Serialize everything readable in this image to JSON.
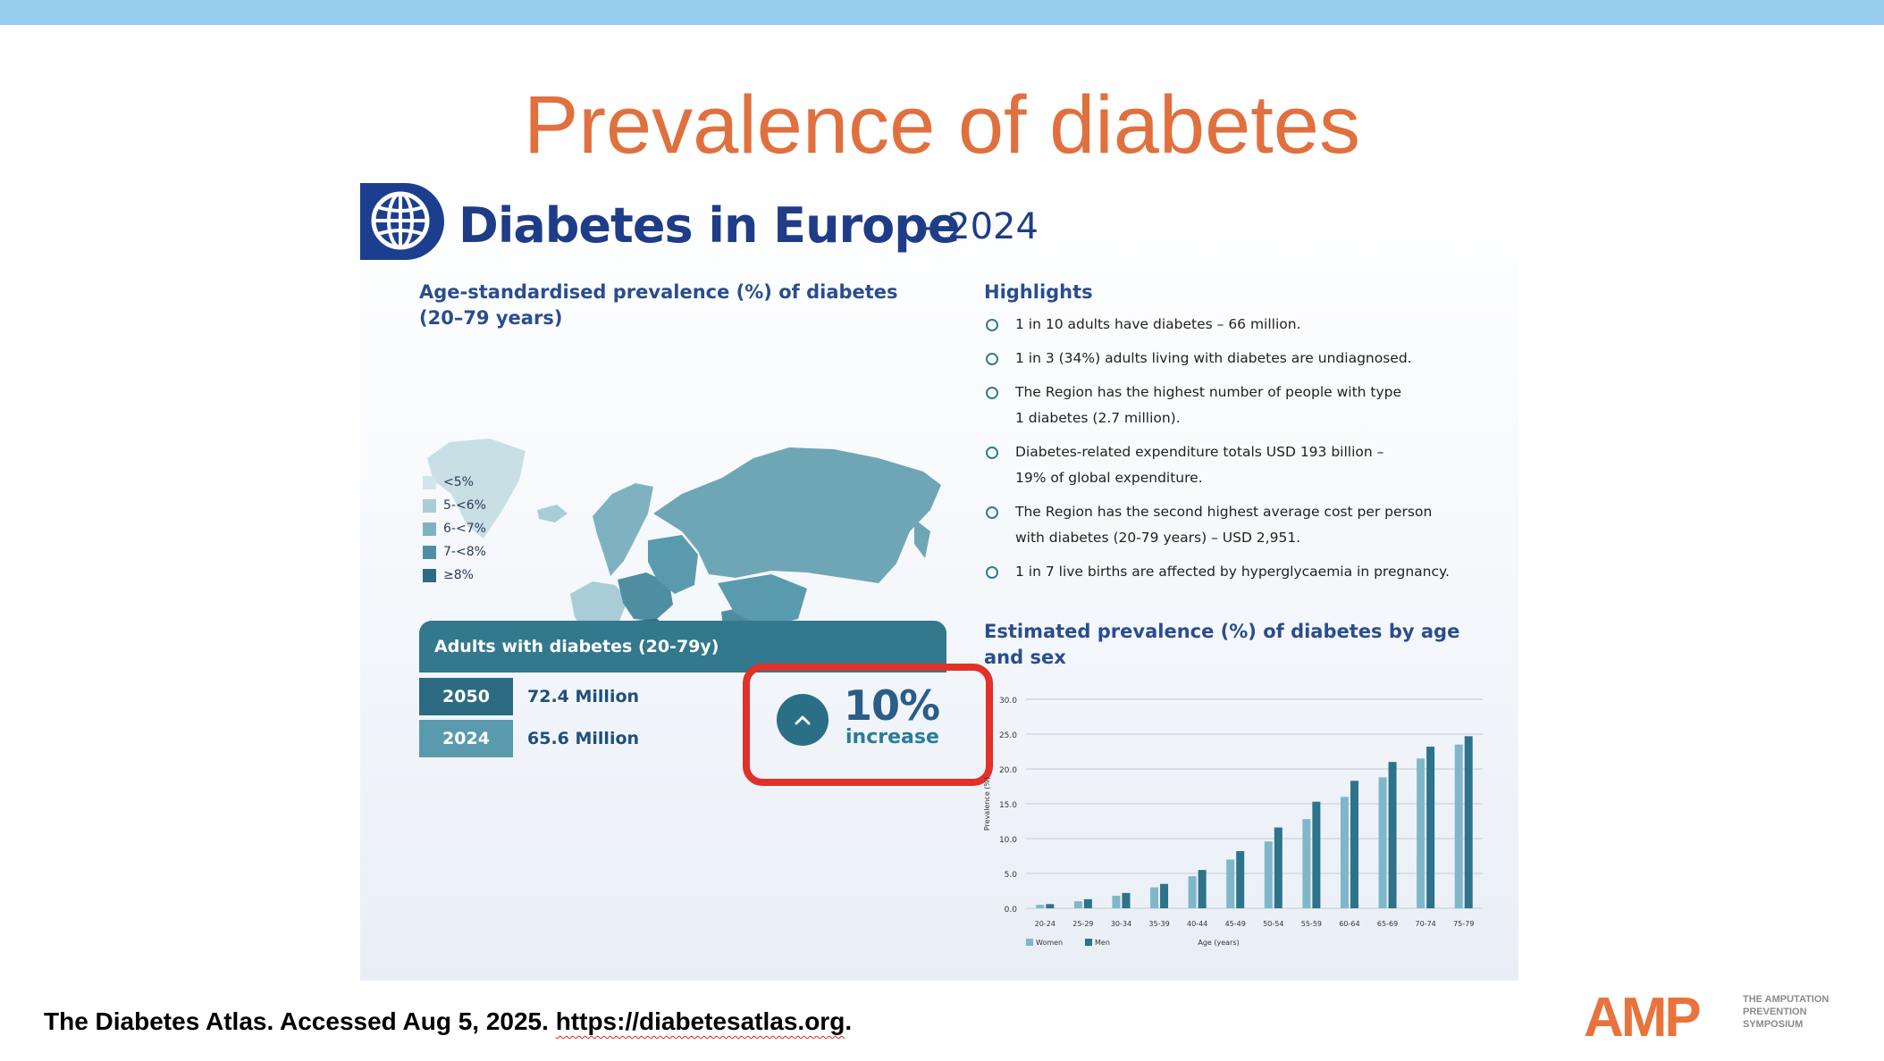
{
  "slide": {
    "title": "Prevalence of diabetes",
    "citation_prefix": "The Diabetes Atlas. Accessed Aug 5, 2025. ",
    "citation_link": "https://diabetesatlas.org",
    "citation_suffix": "."
  },
  "infographic": {
    "title": "Diabetes in Europe",
    "year": "- 2024",
    "map": {
      "heading_line1": "Age-standardised prevalence (%) of diabetes",
      "heading_line2": "(20–79 years)",
      "legend": [
        {
          "label": "<5%",
          "color": "#d3e4ea"
        },
        {
          "label": "5-<6%",
          "color": "#a9cdd7"
        },
        {
          "label": "6-<7%",
          "color": "#7fb2c0"
        },
        {
          "label": "7-<8%",
          "color": "#4f8ea2"
        },
        {
          "label": "≥8%",
          "color": "#2d6b82"
        }
      ]
    },
    "highlights": {
      "heading": "Highlights",
      "items": [
        {
          "line1": "1 in 10 adults have diabetes – 66 million.",
          "line2": ""
        },
        {
          "line1": "1 in 3 (34%) adults living with diabetes are undiagnosed.",
          "line2": ""
        },
        {
          "line1": "The Region has the highest number of people with type",
          "line2": "1 diabetes (2.7 million)."
        },
        {
          "line1": "Diabetes-related expenditure totals USD 193 billion –",
          "line2": "19% of global expenditure."
        },
        {
          "line1": "The Region has the second highest average cost per person",
          "line2": "with diabetes (20-79 years) – USD 2,951."
        },
        {
          "line1": "1 in 7 live births are affected by hyperglycaemia in pregnancy.",
          "line2": ""
        }
      ]
    },
    "adults": {
      "heading": "Adults with diabetes (20-79y)",
      "rows": [
        {
          "year": "2050",
          "value": "72.4 Million",
          "color": "#2d6b82"
        },
        {
          "year": "2024",
          "value": "65.6 Million",
          "color": "#5a9aae"
        }
      ],
      "increase_pct": "10%",
      "increase_word": "increase"
    }
  },
  "chart_data": {
    "type": "bar",
    "title": "Estimated prevalence (%) of diabetes by age and sex",
    "xlabel": "Age (years)",
    "ylabel": "Prevalence (%)",
    "ylim": [
      0,
      30
    ],
    "yticks": [
      "0.0",
      "5.0",
      "10.0",
      "15.0",
      "20.0",
      "25.0",
      "30.0"
    ],
    "categories": [
      "20-24",
      "25-29",
      "30-34",
      "35-39",
      "40-44",
      "45-49",
      "50-54",
      "55-59",
      "60-64",
      "65-69",
      "70-74",
      "75-79"
    ],
    "series": [
      {
        "name": "Women",
        "color": "#7fb7c8",
        "values": [
          0.5,
          1.0,
          1.8,
          3.0,
          4.6,
          7.0,
          9.6,
          12.8,
          16.0,
          18.8,
          21.5,
          23.5
        ]
      },
      {
        "name": "Men",
        "color": "#2d7389",
        "values": [
          0.6,
          1.3,
          2.2,
          3.5,
          5.5,
          8.2,
          11.6,
          15.3,
          18.3,
          21.0,
          23.2,
          24.7
        ]
      }
    ],
    "grid": true,
    "legend_position": "bottom-left"
  },
  "logo": {
    "mark": "AMP",
    "line1": "THE AMPUTATION",
    "line2": "PREVENTION",
    "line3": "SYMPOSIUM",
    "color": "#e8733c"
  }
}
